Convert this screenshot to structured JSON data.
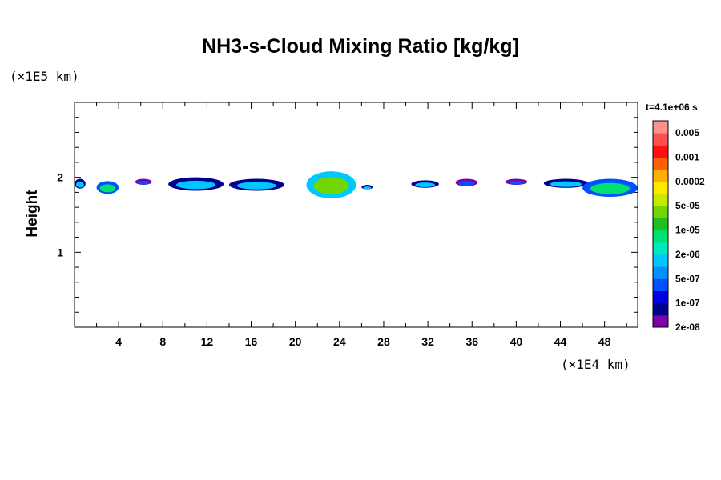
{
  "chart_data": {
    "type": "heatmap",
    "title": "NH3-s-Cloud Mixing Ratio [kg/kg]",
    "xlabel": "",
    "ylabel": "Height",
    "x_unit": "(×1E4 km)",
    "y_unit": "(×1E5 km)",
    "xlim": [
      0,
      51
    ],
    "ylim": [
      0,
      3
    ],
    "x_ticks": [
      4,
      8,
      12,
      16,
      20,
      24,
      28,
      32,
      36,
      40,
      44,
      48
    ],
    "y_ticks": [
      1,
      2
    ],
    "timestamp": "t=4.1e+06 s",
    "colorbar": {
      "labels": [
        "0.005",
        "0.001",
        "0.0002",
        "5e-05",
        "1e-05",
        "2e-06",
        "5e-07",
        "1e-07",
        "2e-08"
      ],
      "colors_bottom_to_top": [
        "#7f00a8",
        "#00008f",
        "#0000e0",
        "#0050ff",
        "#0090ff",
        "#00c8ff",
        "#00e8c0",
        "#00e070",
        "#20c020",
        "#70d800",
        "#c8e800",
        "#ffe800",
        "#ffb000",
        "#ff6000",
        "#ff1010",
        "#ff5050",
        "#ff9090"
      ]
    },
    "cloud_patches": [
      {
        "x": [
          0.0,
          1.0
        ],
        "y": [
          1.85,
          1.98
        ],
        "level": "5e-07"
      },
      {
        "x": [
          2.0,
          4.0
        ],
        "y": [
          1.78,
          1.95
        ],
        "level": "2e-06"
      },
      {
        "x": [
          5.5,
          7.0
        ],
        "y": [
          1.9,
          1.98
        ],
        "level": "1e-07"
      },
      {
        "x": [
          8.5,
          13.5
        ],
        "y": [
          1.82,
          2.0
        ],
        "level": "5e-07"
      },
      {
        "x": [
          14.0,
          19.0
        ],
        "y": [
          1.82,
          1.98
        ],
        "level": "5e-07"
      },
      {
        "x": [
          21.0,
          25.5
        ],
        "y": [
          1.72,
          2.08
        ],
        "level": "1e-05"
      },
      {
        "x": [
          26.0,
          27.0
        ],
        "y": [
          1.84,
          1.9
        ],
        "level": "5e-07"
      },
      {
        "x": [
          30.5,
          33.0
        ],
        "y": [
          1.86,
          1.96
        ],
        "level": "5e-07"
      },
      {
        "x": [
          34.5,
          36.5
        ],
        "y": [
          1.88,
          1.98
        ],
        "level": "1e-07"
      },
      {
        "x": [
          39.0,
          41.0
        ],
        "y": [
          1.9,
          1.98
        ],
        "level": "1e-07"
      },
      {
        "x": [
          42.5,
          46.5
        ],
        "y": [
          1.86,
          1.98
        ],
        "level": "5e-07"
      },
      {
        "x": [
          46.0,
          51.0
        ],
        "y": [
          1.74,
          1.98
        ],
        "level": "2e-06"
      }
    ]
  }
}
